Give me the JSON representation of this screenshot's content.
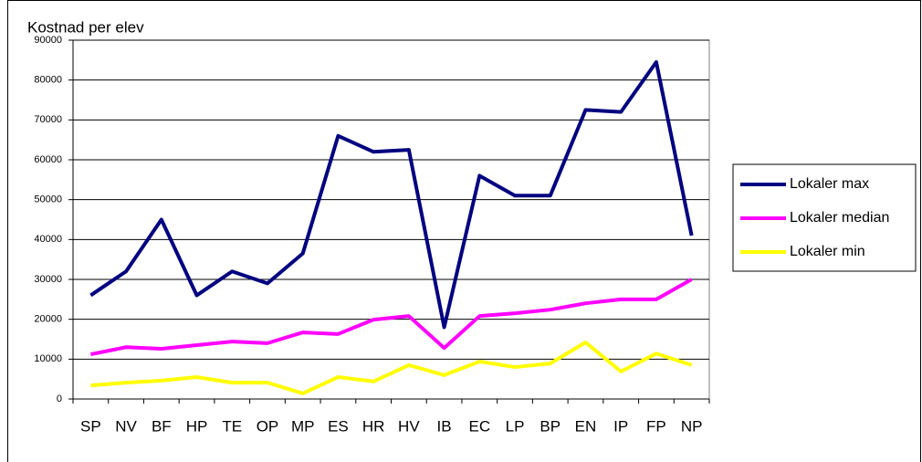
{
  "chart_data": {
    "type": "line",
    "title": "Kostnad per elev",
    "categories": [
      "SP",
      "NV",
      "BF",
      "HP",
      "TE",
      "OP",
      "MP",
      "ES",
      "HR",
      "HV",
      "IB",
      "EC",
      "LP",
      "BP",
      "EN",
      "IP",
      "FP",
      "NP"
    ],
    "series": [
      {
        "name": "Lokaler max",
        "color": "#000080",
        "values": [
          26000,
          32000,
          45000,
          26000,
          32000,
          29000,
          36500,
          66000,
          62000,
          62500,
          18000,
          56000,
          51000,
          51000,
          72500,
          72000,
          84500,
          41000
        ]
      },
      {
        "name": "Lokaler median",
        "color": "#ff00ff",
        "values": [
          11200,
          13000,
          12600,
          13500,
          14400,
          14000,
          16700,
          16300,
          19900,
          20800,
          12800,
          20800,
          21500,
          22400,
          24000,
          25000,
          25000,
          30000
        ]
      },
      {
        "name": "Lokaler min",
        "color": "#ffff00",
        "values": [
          3400,
          4100,
          4600,
          5500,
          4100,
          4100,
          1400,
          5500,
          4400,
          8500,
          6000,
          9400,
          8000,
          8900,
          14200,
          6900,
          11400,
          8500
        ]
      }
    ],
    "ylim": [
      0,
      90000
    ],
    "yticks": [
      0,
      10000,
      20000,
      30000,
      40000,
      50000,
      60000,
      70000,
      80000,
      90000
    ],
    "grid": true,
    "legend": "right"
  }
}
